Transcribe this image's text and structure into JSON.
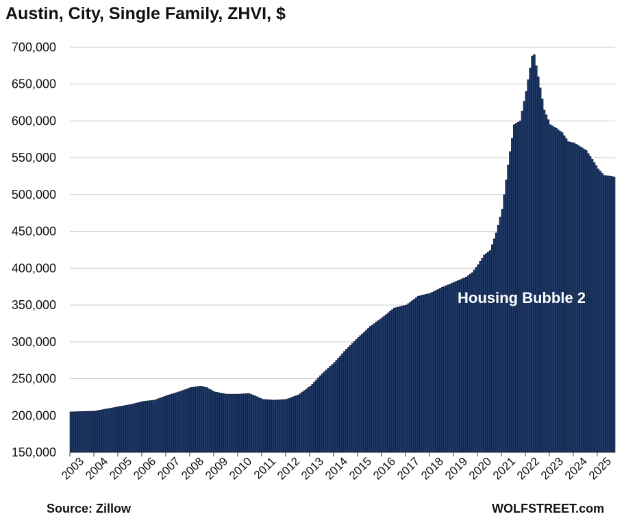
{
  "chart_data": {
    "type": "bar",
    "title": "Austin, City, Single Family, ZHVI, $",
    "xlabel": "",
    "ylabel": "",
    "ylim": [
      150000,
      700000
    ],
    "ytick_values": [
      150000,
      200000,
      250000,
      300000,
      350000,
      400000,
      450000,
      500000,
      550000,
      600000,
      650000,
      700000
    ],
    "ytick_labels": [
      "150,000",
      "200,000",
      "250,000",
      "300,000",
      "350,000",
      "400,000",
      "450,000",
      "500,000",
      "550,000",
      "600,000",
      "650,000",
      "700,000"
    ],
    "xtick_labels": [
      "2003",
      "2004",
      "2005",
      "2006",
      "2007",
      "2008",
      "2009",
      "2010",
      "2011",
      "2012",
      "2013",
      "2014",
      "2015",
      "2016",
      "2017",
      "2018",
      "2019",
      "2020",
      "2021",
      "2022",
      "2023",
      "2024",
      "2025"
    ],
    "start": "2003-01",
    "frequency": "monthly",
    "grid": true,
    "bar_color": "#1f3864",
    "annotation": "Housing Bubble 2",
    "source": "Source: Zillow",
    "credit": "WOLFSTREET.com",
    "anchors": [
      [
        "2003-01",
        205000
      ],
      [
        "2004-01",
        206000
      ],
      [
        "2005-01",
        212000
      ],
      [
        "2005-07",
        215000
      ],
      [
        "2006-01",
        219000
      ],
      [
        "2006-07",
        221000
      ],
      [
        "2007-01",
        227000
      ],
      [
        "2007-07",
        232000
      ],
      [
        "2008-01",
        238000
      ],
      [
        "2008-06",
        240000
      ],
      [
        "2008-09",
        238000
      ],
      [
        "2009-01",
        232000
      ],
      [
        "2009-07",
        229000
      ],
      [
        "2010-01",
        229000
      ],
      [
        "2010-06",
        230000
      ],
      [
        "2010-09",
        227000
      ],
      [
        "2011-01",
        222000
      ],
      [
        "2011-07",
        221000
      ],
      [
        "2012-01",
        222000
      ],
      [
        "2012-07",
        228000
      ],
      [
        "2013-01",
        240000
      ],
      [
        "2013-07",
        257000
      ],
      [
        "2014-01",
        272000
      ],
      [
        "2014-07",
        290000
      ],
      [
        "2015-01",
        306000
      ],
      [
        "2015-07",
        321000
      ],
      [
        "2016-01",
        333000
      ],
      [
        "2016-07",
        346000
      ],
      [
        "2017-01",
        350000
      ],
      [
        "2017-07",
        362000
      ],
      [
        "2018-01",
        366000
      ],
      [
        "2018-07",
        374000
      ],
      [
        "2019-01",
        381000
      ],
      [
        "2019-07",
        388000
      ],
      [
        "2019-10",
        394000
      ],
      [
        "2020-01",
        405000
      ],
      [
        "2020-04",
        418000
      ],
      [
        "2020-07",
        424000
      ],
      [
        "2020-10",
        448000
      ],
      [
        "2021-01",
        480000
      ],
      [
        "2021-04",
        540000
      ],
      [
        "2021-07",
        595000
      ],
      [
        "2021-10",
        600000
      ],
      [
        "2022-01",
        640000
      ],
      [
        "2022-04",
        688000
      ],
      [
        "2022-05",
        690000
      ],
      [
        "2022-07",
        660000
      ],
      [
        "2022-10",
        615000
      ],
      [
        "2023-01",
        595000
      ],
      [
        "2023-04",
        590000
      ],
      [
        "2023-07",
        584000
      ],
      [
        "2023-10",
        572000
      ],
      [
        "2024-01",
        570000
      ],
      [
        "2024-04",
        565000
      ],
      [
        "2024-07",
        560000
      ],
      [
        "2024-10",
        548000
      ],
      [
        "2025-01",
        535000
      ],
      [
        "2025-04",
        526000
      ],
      [
        "2025-07",
        525000
      ],
      [
        "2025-09",
        524000
      ]
    ]
  }
}
